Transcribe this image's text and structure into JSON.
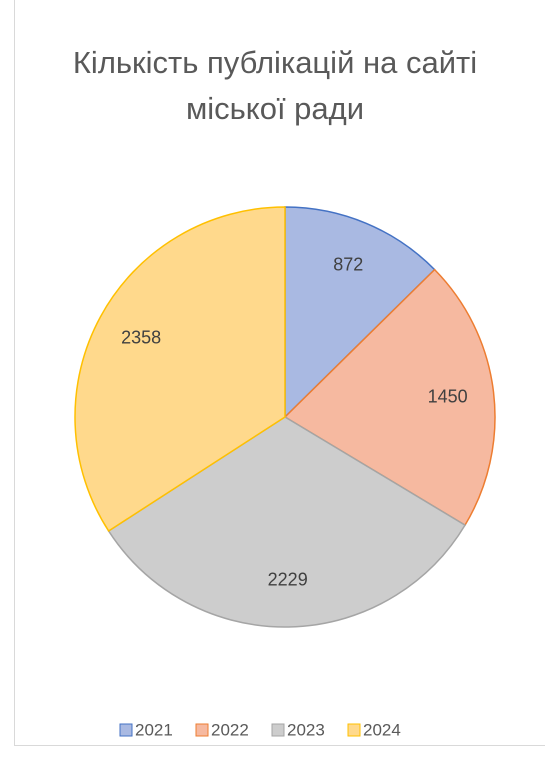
{
  "chart_data": {
    "type": "pie",
    "title": "Кількість публікацій на сайті міської ради",
    "categories": [
      "2021",
      "2022",
      "2023",
      "2024"
    ],
    "values": [
      872,
      1450,
      2229,
      2358
    ],
    "colors": [
      "#a9b9e2",
      "#f6b9a0",
      "#cdcdcd",
      "#ffd98c"
    ],
    "edge_colors": [
      "#4472c4",
      "#ed7d31",
      "#a5a5a5",
      "#ffc000"
    ],
    "legend": "bottom"
  }
}
